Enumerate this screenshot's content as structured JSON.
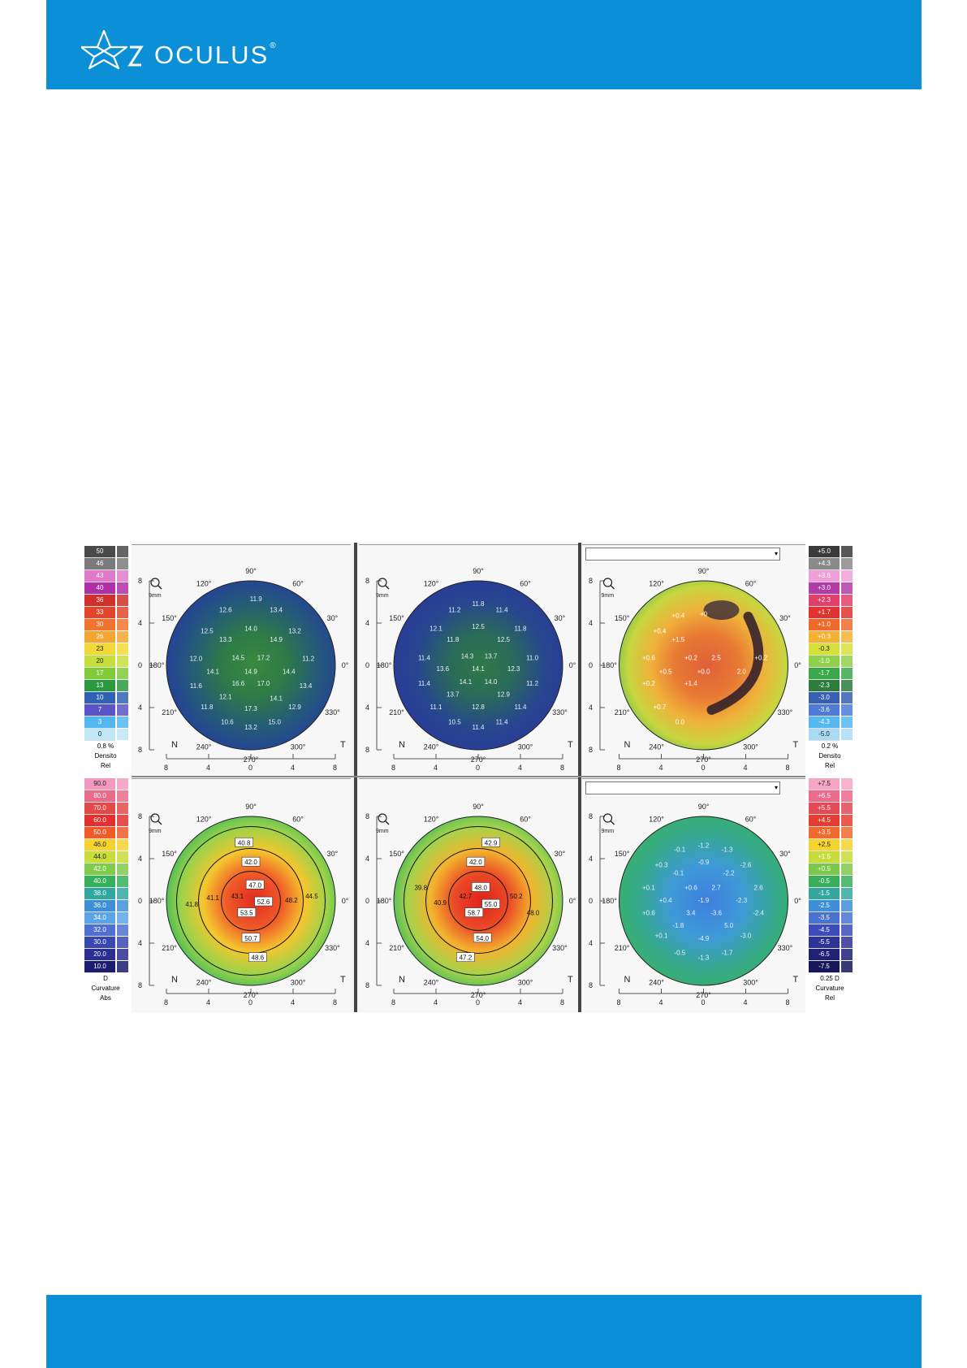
{
  "brand": {
    "name": "OCULUS",
    "registered": "®",
    "color_brand": "#0b8fd6"
  },
  "figure": {
    "left_scale_top": {
      "labels": [
        "50",
        "46",
        "43",
        "40",
        "36",
        "33",
        "30",
        "26",
        "23",
        "20",
        "17",
        "13",
        "10",
        "7",
        "3",
        "0"
      ],
      "colors": [
        "#4a4a4a",
        "#7a7a7a",
        "#e07ac8",
        "#b02ea8",
        "#d0302a",
        "#e4452a",
        "#f0742e",
        "#f5a630",
        "#f2d93a",
        "#c7df3a",
        "#7fcb3a",
        "#2a9a3e",
        "#2f62b5",
        "#5b54c8",
        "#52b6ef",
        "#bfe8f7"
      ],
      "footer": [
        "0.8 %",
        "Densito",
        "Rel"
      ]
    },
    "left_scale_bottom": {
      "labels": [
        "90.0",
        "80.0",
        "70.0",
        "60.0",
        "50.0",
        "46.0",
        "44.0",
        "42.0",
        "40.0",
        "38.0",
        "36.0",
        "34.0",
        "32.0",
        "30.0",
        "20.0",
        "10.0"
      ],
      "colors": [
        "#f49ac0",
        "#ea6a8a",
        "#e24a4a",
        "#e62e2e",
        "#ef5a2a",
        "#f5d22e",
        "#c9dc3a",
        "#7fcb4a",
        "#34b05a",
        "#2fa9a0",
        "#3f8fd8",
        "#5ba4e8",
        "#4f70d0",
        "#3848b0",
        "#2a2e90",
        "#1c1c70"
      ],
      "footer": [
        "D",
        "Curvature",
        "Abs"
      ]
    },
    "right_scale_top": {
      "labels": [
        "+5.0",
        "+4.3",
        "+3.6",
        "+3.0",
        "+2.3",
        "+1.7",
        "+1.0",
        "+0.3",
        "-0.3",
        "-1.0",
        "-1.7",
        "-2.3",
        "-3.0",
        "-3.6",
        "-4.3",
        "-5.0"
      ],
      "colors": [
        "#3a3a3a",
        "#8a8a8a",
        "#f0a0d8",
        "#b43aa8",
        "#e0406a",
        "#e43030",
        "#ef6a2a",
        "#f5b230",
        "#d7df3a",
        "#8fd04a",
        "#3aa84a",
        "#2c7c3e",
        "#3a5fb0",
        "#4e7ad8",
        "#55b8ee",
        "#a9dcf4"
      ],
      "footer": [
        "0.2 %",
        "Densito",
        "Rel"
      ]
    },
    "right_scale_bottom": {
      "labels": [
        "+7.5",
        "+6.5",
        "+5.5",
        "+4.5",
        "+3.5",
        "+2.5",
        "+1.5",
        "+0.5",
        "-0.5",
        "-1.5",
        "-2.5",
        "-3.5",
        "-4.5",
        "-5.5",
        "-6.5",
        "-7.5"
      ],
      "colors": [
        "#f4a6c4",
        "#ec6a8c",
        "#e24a56",
        "#e83c30",
        "#f06a2e",
        "#f5d42e",
        "#c6dc3a",
        "#7cc84a",
        "#3aae5a",
        "#34a8a0",
        "#3f8ed8",
        "#4a72d0",
        "#3c4cb8",
        "#2e3496",
        "#1f2174",
        "#15175a"
      ],
      "footer": [
        "0.25 D",
        "Curvature",
        "Rel"
      ]
    },
    "map_common": {
      "angles": [
        "90°",
        "60°",
        "30°",
        "0°",
        "330°",
        "300°",
        "270°",
        "240°",
        "210°",
        "180°",
        "150°",
        "120°"
      ],
      "nasal": "N",
      "temporal": "T",
      "zoom_label": "9mm",
      "axis_ticks": [
        "8",
        "4",
        "0",
        "4",
        "8"
      ]
    },
    "maps": [
      {
        "id": "density-1",
        "values": [
          {
            "t": "11.9",
            "x": 0.06,
            "y": -0.78
          },
          {
            "t": "12.6",
            "x": -0.3,
            "y": -0.65
          },
          {
            "t": "13.4",
            "x": 0.3,
            "y": -0.65
          },
          {
            "t": "12.5",
            "x": -0.52,
            "y": -0.4
          },
          {
            "t": "14.0",
            "x": 0.0,
            "y": -0.43
          },
          {
            "t": "13.2",
            "x": 0.52,
            "y": -0.4
          },
          {
            "t": "13.3",
            "x": -0.3,
            "y": -0.3
          },
          {
            "t": "14.9",
            "x": 0.3,
            "y": -0.3
          },
          {
            "t": "12.0",
            "x": -0.65,
            "y": -0.07
          },
          {
            "t": "14.5",
            "x": -0.15,
            "y": -0.08
          },
          {
            "t": "17.2",
            "x": 0.15,
            "y": -0.08
          },
          {
            "t": "11.2",
            "x": 0.68,
            "y": -0.07
          },
          {
            "t": "14.1",
            "x": -0.45,
            "y": 0.08
          },
          {
            "t": "14.9",
            "x": 0.0,
            "y": 0.08
          },
          {
            "t": "14.4",
            "x": 0.45,
            "y": 0.08
          },
          {
            "t": "11.6",
            "x": -0.65,
            "y": 0.25
          },
          {
            "t": "16.6",
            "x": -0.15,
            "y": 0.22
          },
          {
            "t": "17.0",
            "x": 0.15,
            "y": 0.22
          },
          {
            "t": "13.4",
            "x": 0.65,
            "y": 0.25
          },
          {
            "t": "12.1",
            "x": -0.3,
            "y": 0.38
          },
          {
            "t": "14.1",
            "x": 0.3,
            "y": 0.4
          },
          {
            "t": "11.8",
            "x": -0.52,
            "y": 0.5
          },
          {
            "t": "17.3",
            "x": 0.0,
            "y": 0.52
          },
          {
            "t": "12.9",
            "x": 0.52,
            "y": 0.5
          },
          {
            "t": "10.6",
            "x": -0.28,
            "y": 0.68
          },
          {
            "t": "15.0",
            "x": 0.28,
            "y": 0.68
          },
          {
            "t": "13.2",
            "x": 0.0,
            "y": 0.74
          }
        ]
      },
      {
        "id": "density-2",
        "values": [
          {
            "t": "11.8",
            "x": 0.0,
            "y": -0.72
          },
          {
            "t": "11.2",
            "x": -0.28,
            "y": -0.65
          },
          {
            "t": "11.4",
            "x": 0.28,
            "y": -0.65
          },
          {
            "t": "12.1",
            "x": -0.5,
            "y": -0.43
          },
          {
            "t": "12.5",
            "x": 0.0,
            "y": -0.45
          },
          {
            "t": "11.8",
            "x": 0.5,
            "y": -0.43
          },
          {
            "t": "11.8",
            "x": -0.3,
            "y": -0.3
          },
          {
            "t": "12.5",
            "x": 0.3,
            "y": -0.3
          },
          {
            "t": "11.4",
            "x": -0.64,
            "y": -0.08
          },
          {
            "t": "14.3",
            "x": -0.13,
            "y": -0.1
          },
          {
            "t": "13.7",
            "x": 0.15,
            "y": -0.1
          },
          {
            "t": "11.0",
            "x": 0.64,
            "y": -0.08
          },
          {
            "t": "13.6",
            "x": -0.42,
            "y": 0.05
          },
          {
            "t": "14.1",
            "x": 0.0,
            "y": 0.05
          },
          {
            "t": "12.3",
            "x": 0.42,
            "y": 0.05
          },
          {
            "t": "11.4",
            "x": -0.64,
            "y": 0.22
          },
          {
            "t": "14.1",
            "x": -0.15,
            "y": 0.2
          },
          {
            "t": "14.0",
            "x": 0.15,
            "y": 0.2
          },
          {
            "t": "11.2",
            "x": 0.64,
            "y": 0.22
          },
          {
            "t": "13.7",
            "x": -0.3,
            "y": 0.35
          },
          {
            "t": "12.9",
            "x": 0.3,
            "y": 0.35
          },
          {
            "t": "11.1",
            "x": -0.5,
            "y": 0.5
          },
          {
            "t": "12.8",
            "x": 0.0,
            "y": 0.5
          },
          {
            "t": "11.4",
            "x": 0.5,
            "y": 0.5
          },
          {
            "t": "10.5",
            "x": -0.28,
            "y": 0.68
          },
          {
            "t": "11.4",
            "x": 0.28,
            "y": 0.68
          },
          {
            "t": "11.4",
            "x": 0.0,
            "y": 0.74
          }
        ]
      },
      {
        "id": "density-diff",
        "values": [
          {
            "t": "+0.4",
            "x": -0.3,
            "y": -0.58
          },
          {
            "t": "+0",
            "x": 0.0,
            "y": -0.6
          },
          {
            "t": "+0.4",
            "x": -0.52,
            "y": -0.4
          },
          {
            "t": "+1.5",
            "x": -0.3,
            "y": -0.3
          },
          {
            "t": "+0.6",
            "x": -0.65,
            "y": -0.08
          },
          {
            "t": "+0.2",
            "x": -0.15,
            "y": -0.08
          },
          {
            "t": "2.5",
            "x": 0.15,
            "y": -0.08
          },
          {
            "t": "+0.2",
            "x": 0.68,
            "y": -0.08
          },
          {
            "t": "+0.5",
            "x": -0.45,
            "y": 0.08
          },
          {
            "t": "+0.0",
            "x": 0.0,
            "y": 0.08
          },
          {
            "t": "2.0",
            "x": 0.45,
            "y": 0.08
          },
          {
            "t": "+0.2",
            "x": -0.65,
            "y": 0.22
          },
          {
            "t": "+1.4",
            "x": -0.15,
            "y": 0.22
          },
          {
            "t": "+0.7",
            "x": -0.52,
            "y": 0.5
          },
          {
            "t": "0.0",
            "x": -0.28,
            "y": 0.68
          }
        ]
      },
      {
        "id": "curvature-1",
        "values": [
          {
            "t": "40.8",
            "x": -0.08,
            "y": -0.68,
            "lab": true
          },
          {
            "t": "42.0",
            "x": 0.0,
            "y": -0.45,
            "lab": true
          },
          {
            "t": "47.0",
            "x": 0.05,
            "y": -0.18,
            "lab": true
          },
          {
            "t": "41.1",
            "x": -0.45,
            "y": -0.03,
            "lab": false
          },
          {
            "t": "43.1",
            "x": -0.16,
            "y": -0.05,
            "lab": false
          },
          {
            "t": "41.8",
            "x": -0.7,
            "y": 0.05,
            "lab": false
          },
          {
            "t": "52.6",
            "x": 0.15,
            "y": 0.02,
            "lab": true
          },
          {
            "t": "48.2",
            "x": 0.48,
            "y": 0.0,
            "lab": false
          },
          {
            "t": "44.5",
            "x": 0.72,
            "y": -0.05,
            "lab": false
          },
          {
            "t": "53.5",
            "x": -0.05,
            "y": 0.15,
            "lab": true
          },
          {
            "t": "50.7",
            "x": 0.0,
            "y": 0.45,
            "lab": true
          },
          {
            "t": "48.6",
            "x": 0.08,
            "y": 0.68,
            "lab": true
          }
        ]
      },
      {
        "id": "curvature-2",
        "values": [
          {
            "t": "42.9",
            "x": 0.15,
            "y": -0.68,
            "lab": true
          },
          {
            "t": "42.0",
            "x": -0.03,
            "y": -0.45,
            "lab": true
          },
          {
            "t": "39.8",
            "x": -0.68,
            "y": -0.15,
            "lab": false
          },
          {
            "t": "48.0",
            "x": 0.03,
            "y": -0.15,
            "lab": true
          },
          {
            "t": "40.9",
            "x": -0.45,
            "y": 0.03,
            "lab": false
          },
          {
            "t": "42.7",
            "x": -0.15,
            "y": -0.05,
            "lab": false
          },
          {
            "t": "55.0",
            "x": 0.15,
            "y": 0.05,
            "lab": true
          },
          {
            "t": "50.2",
            "x": 0.45,
            "y": -0.05,
            "lab": false
          },
          {
            "t": "58.7",
            "x": -0.05,
            "y": 0.15,
            "lab": true
          },
          {
            "t": "48.0",
            "x": 0.65,
            "y": 0.15,
            "lab": false
          },
          {
            "t": "54.0",
            "x": 0.05,
            "y": 0.45,
            "lab": true
          },
          {
            "t": "47.2",
            "x": -0.15,
            "y": 0.68,
            "lab": true
          }
        ]
      },
      {
        "id": "curvature-diff",
        "values": [
          {
            "t": "-1.2",
            "x": 0.0,
            "y": -0.65
          },
          {
            "t": "-0.1",
            "x": -0.28,
            "y": -0.6
          },
          {
            "t": "-1.3",
            "x": 0.28,
            "y": -0.6
          },
          {
            "t": "+0.3",
            "x": -0.5,
            "y": -0.42
          },
          {
            "t": "-0.9",
            "x": 0.0,
            "y": -0.45
          },
          {
            "t": "-2.6",
            "x": 0.5,
            "y": -0.42
          },
          {
            "t": "-0.1",
            "x": -0.3,
            "y": -0.32
          },
          {
            "t": "-2.2",
            "x": 0.3,
            "y": -0.32
          },
          {
            "t": "+0.1",
            "x": -0.65,
            "y": -0.15
          },
          {
            "t": "+0.6",
            "x": -0.15,
            "y": -0.15
          },
          {
            "t": "2.7",
            "x": 0.15,
            "y": -0.15
          },
          {
            "t": "2.6",
            "x": 0.65,
            "y": -0.15
          },
          {
            "t": "+0.4",
            "x": -0.45,
            "y": 0.0
          },
          {
            "t": "-1.9",
            "x": 0.0,
            "y": 0.0
          },
          {
            "t": "-2.3",
            "x": 0.45,
            "y": 0.0
          },
          {
            "t": "+0.6",
            "x": -0.65,
            "y": 0.15
          },
          {
            "t": "3.4",
            "x": -0.15,
            "y": 0.15
          },
          {
            "t": "-3.6",
            "x": 0.15,
            "y": 0.15
          },
          {
            "t": "-2.4",
            "x": 0.65,
            "y": 0.15
          },
          {
            "t": "-1.8",
            "x": -0.3,
            "y": 0.3
          },
          {
            "t": "5.0",
            "x": 0.3,
            "y": 0.3
          },
          {
            "t": "+0.1",
            "x": -0.5,
            "y": 0.42
          },
          {
            "t": "-4.9",
            "x": 0.0,
            "y": 0.45
          },
          {
            "t": "-3.0",
            "x": 0.5,
            "y": 0.42
          },
          {
            "t": "-0.5",
            "x": -0.28,
            "y": 0.62
          },
          {
            "t": "-1.7",
            "x": 0.28,
            "y": 0.62
          },
          {
            "t": "-1.3",
            "x": 0.0,
            "y": 0.68
          }
        ]
      }
    ]
  }
}
